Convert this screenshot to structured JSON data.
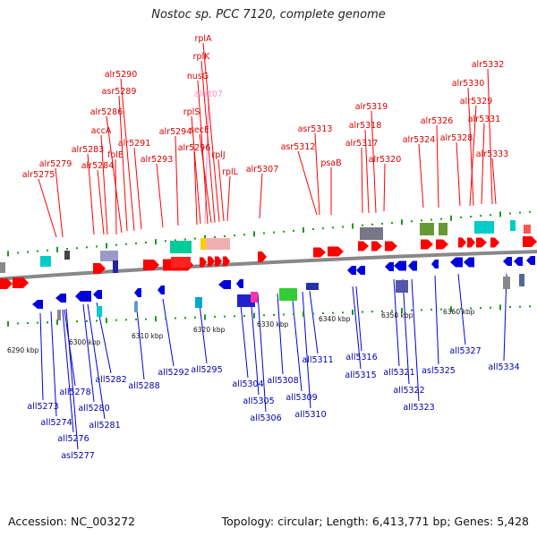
{
  "title": "Nostoc sp. PCC 7120, complete genome",
  "footer": {
    "accession": "Accession: NC_003272",
    "summary": "Topology: circular; Length: 6,413,771 bp; Genes: 5,428"
  },
  "colors": {
    "forward": "#ff0000",
    "reverse": "#0000dd",
    "rna": "#f090d0",
    "backbone": "#888888",
    "tick": "#1a9a1a"
  },
  "scale": {
    "ticks": [
      {
        "label": "6290 kbp"
      },
      {
        "label": "6300 kbp"
      },
      {
        "label": "6310 kbp"
      },
      {
        "label": "6320 kbp"
      },
      {
        "label": "6330 kbp"
      },
      {
        "label": "6340 kbp"
      },
      {
        "label": "6350 kbp"
      },
      {
        "label": "6360 kbp"
      }
    ]
  },
  "top_labels": [
    {
      "text": "alr5275",
      "kind": "gene"
    },
    {
      "text": "alr5279",
      "kind": "gene"
    },
    {
      "text": "alr5283",
      "kind": "gene"
    },
    {
      "text": "alr5284",
      "kind": "gene"
    },
    {
      "text": "accA",
      "kind": "gene"
    },
    {
      "text": "folE",
      "kind": "gene"
    },
    {
      "text": "alr5286",
      "kind": "gene"
    },
    {
      "text": "asr5289",
      "kind": "gene"
    },
    {
      "text": "alr5290",
      "kind": "gene"
    },
    {
      "text": "alr5291",
      "kind": "gene"
    },
    {
      "text": "alr5293",
      "kind": "gene"
    },
    {
      "text": "alr5294",
      "kind": "gene"
    },
    {
      "text": "alr5296",
      "kind": "gene"
    },
    {
      "text": "rplS",
      "kind": "gene"
    },
    {
      "text": "alrrt07",
      "kind": "rna"
    },
    {
      "text": "nusG",
      "kind": "gene"
    },
    {
      "text": "secE",
      "kind": "gene"
    },
    {
      "text": "rplK",
      "kind": "gene"
    },
    {
      "text": "rplA",
      "kind": "gene"
    },
    {
      "text": "rplJ",
      "kind": "gene"
    },
    {
      "text": "rplL",
      "kind": "gene"
    },
    {
      "text": "alr5307",
      "kind": "gene"
    },
    {
      "text": "asr5312",
      "kind": "gene"
    },
    {
      "text": "asr5313",
      "kind": "gene"
    },
    {
      "text": "psaB",
      "kind": "gene"
    },
    {
      "text": "alr5317",
      "kind": "gene"
    },
    {
      "text": "alr5318",
      "kind": "gene"
    },
    {
      "text": "alr5319",
      "kind": "gene"
    },
    {
      "text": "alr5320",
      "kind": "gene"
    },
    {
      "text": "alr5324",
      "kind": "gene"
    },
    {
      "text": "alr5326",
      "kind": "gene"
    },
    {
      "text": "alr5328",
      "kind": "gene"
    },
    {
      "text": "alr5329",
      "kind": "gene"
    },
    {
      "text": "alr5330",
      "kind": "gene"
    },
    {
      "text": "alr5331",
      "kind": "gene"
    },
    {
      "text": "alr5332",
      "kind": "gene"
    },
    {
      "text": "alr5333",
      "kind": "gene"
    }
  ],
  "bottom_labels": [
    {
      "text": "all5273"
    },
    {
      "text": "all5274"
    },
    {
      "text": "all5276"
    },
    {
      "text": "asl5277"
    },
    {
      "text": "all5278"
    },
    {
      "text": "all5280"
    },
    {
      "text": "all5281"
    },
    {
      "text": "all5282"
    },
    {
      "text": "all5288"
    },
    {
      "text": "all5292"
    },
    {
      "text": "all5295"
    },
    {
      "text": "all5304"
    },
    {
      "text": "all5305"
    },
    {
      "text": "all5306"
    },
    {
      "text": "all5308"
    },
    {
      "text": "all5309"
    },
    {
      "text": "all5310"
    },
    {
      "text": "all5311"
    },
    {
      "text": "all5315"
    },
    {
      "text": "all5316"
    },
    {
      "text": "all5321"
    },
    {
      "text": "all5322"
    },
    {
      "text": "all5323"
    },
    {
      "text": "asl5325"
    },
    {
      "text": "all5327"
    },
    {
      "text": "all5334"
    }
  ]
}
